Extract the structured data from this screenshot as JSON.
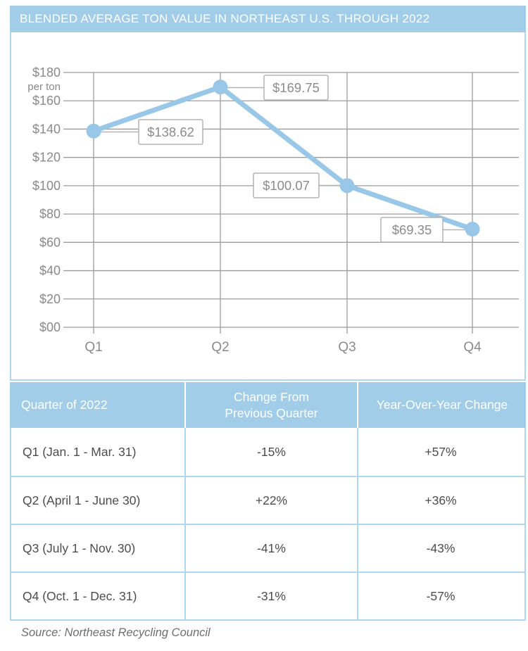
{
  "title": "BLENDED AVERAGE TON VALUE IN NORTHEAST U.S. THROUGH 2022",
  "chart_data": {
    "type": "line",
    "title": "BLENDED AVERAGE TON VALUE IN NORTHEAST U.S. THROUGH 2022",
    "x": [
      "Q1",
      "Q2",
      "Q3",
      "Q4"
    ],
    "values": [
      138.62,
      169.75,
      100.07,
      69.35
    ],
    "point_labels": [
      "$138.62",
      "$169.75",
      "$100.07",
      "$69.35"
    ],
    "y_tick_labels": [
      "$00",
      "$20",
      "$40",
      "$60",
      "$80",
      "$100",
      "$120",
      "$140",
      "$160",
      "$180"
    ],
    "y_unit": "per ton",
    "ylim": [
      0,
      180
    ],
    "grid": true,
    "legend": "none",
    "line_color": "#98c7e7",
    "marker_color": "#98c7e7",
    "gridline_color": "#9b9b9b",
    "axis_text_color": "#8a8a8a",
    "label_box_border": "#b3b3b3",
    "label_text_color": "#8c8c8c",
    "container_border_color": "#aed8f1"
  },
  "table": {
    "headers": [
      "Quarter of 2022",
      "Change From Previous Quarter",
      "Year-Over-Year Change"
    ],
    "rows": [
      {
        "quarter": "Q1 (Jan. 1 - Mar. 31)",
        "change_prev": "-15%",
        "change_yoy": "+57%"
      },
      {
        "quarter": "Q2 (April 1 - June 30)",
        "change_prev": "+22%",
        "change_yoy": "+36%"
      },
      {
        "quarter": "Q3 (July 1 - Nov. 30)",
        "change_prev": "-41%",
        "change_yoy": "-43%"
      },
      {
        "quarter": "Q4 (Oct. 1 - Dec. 31)",
        "change_prev": "-31%",
        "change_yoy": "-57%"
      }
    ]
  },
  "source": "Source: Northeast Recycling Council",
  "colors": {
    "header_blue": "#a2cde9",
    "table_border_blue": "#aed8f1"
  }
}
